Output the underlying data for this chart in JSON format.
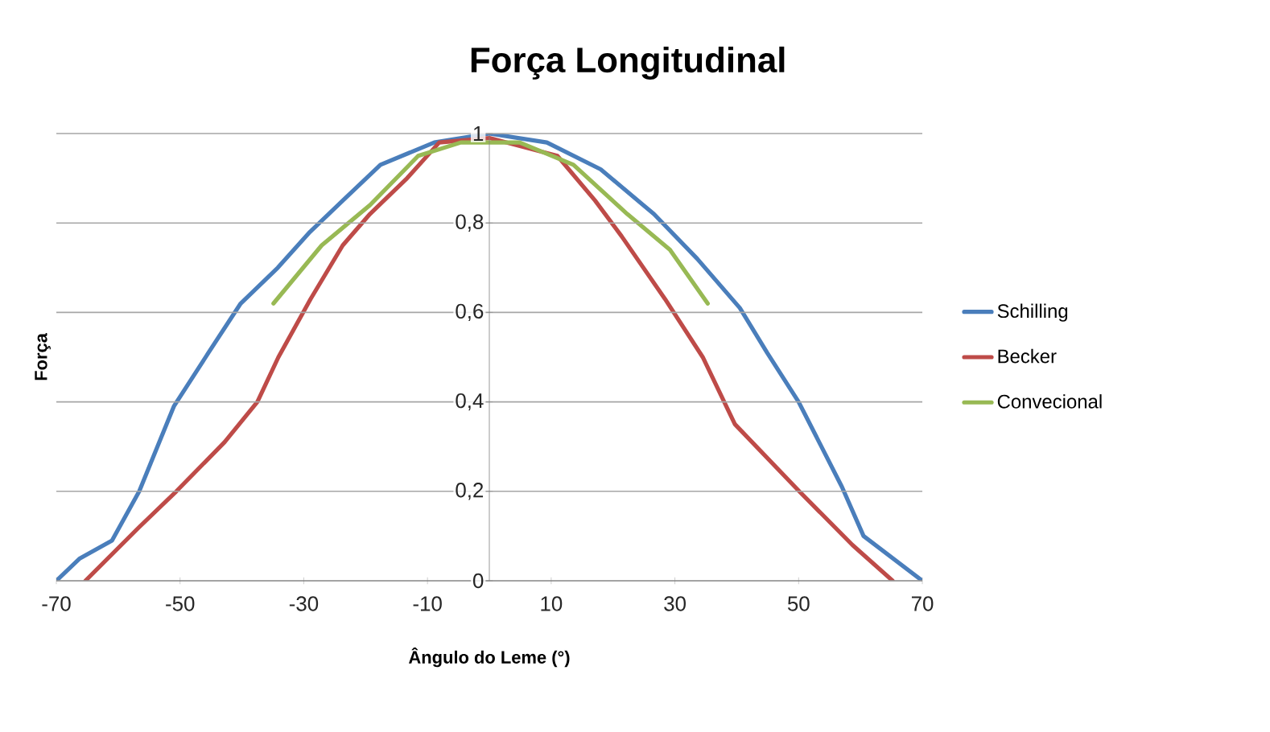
{
  "chart_data": {
    "type": "line",
    "title": "Força Longitudinal",
    "xlabel": "Ângulo do Leme (°)",
    "ylabel": "Força",
    "xlim": [
      -70,
      70
    ],
    "ylim": [
      0,
      1
    ],
    "xticks": [
      -70,
      -50,
      -30,
      -10,
      10,
      30,
      50,
      70
    ],
    "yticks": [
      0,
      {
        "value": 0.2,
        "label": "0,2"
      },
      {
        "value": 0.4,
        "label": "0,4"
      },
      {
        "value": 0.6,
        "label": "0,6"
      },
      {
        "value": 0.8,
        "label": "0,8"
      },
      1
    ],
    "grid": "y",
    "legend": "right",
    "marker": "none",
    "line_style": "solid",
    "series": [
      {
        "name": "Schilling",
        "color": "#4a7ebb",
        "x": [
          -70,
          -66.2,
          -61,
          -56.6,
          -51,
          -45.4,
          -40.2,
          -34.2,
          -29,
          -23.7,
          -17.6,
          -8.9,
          0,
          9.3,
          18,
          26.6,
          33.6,
          40.5,
          44.9,
          50,
          57,
          60.5,
          70
        ],
        "values": [
          0,
          0.05,
          0.09,
          0.2,
          0.39,
          0.51,
          0.62,
          0.7,
          0.78,
          0.85,
          0.93,
          0.98,
          1,
          0.98,
          0.92,
          0.82,
          0.72,
          0.61,
          0.51,
          0.4,
          0.21,
          0.1,
          0
        ]
      },
      {
        "name": "Becker",
        "color": "#be4b48",
        "x": [
          -65.3,
          -56.6,
          -50.6,
          -42.8,
          -37.5,
          -34.1,
          -28.9,
          -23.7,
          -19.3,
          -13.3,
          -8.1,
          0,
          11,
          17.1,
          21.4,
          28.4,
          34.5,
          39.7,
          50.1,
          58.7,
          65.2
        ],
        "values": [
          0,
          0.12,
          0.2,
          0.31,
          0.4,
          0.5,
          0.63,
          0.75,
          0.82,
          0.9,
          0.98,
          0.99,
          0.95,
          0.85,
          0.77,
          0.63,
          0.5,
          0.35,
          0.2,
          0.08,
          0
        ]
      },
      {
        "name": "Convecional",
        "color": "#98b954",
        "x": [
          -34.9,
          -27.1,
          -19.3,
          -11.5,
          -4.6,
          0,
          4.9,
          13.6,
          22.3,
          29.2,
          35.3
        ],
        "values": [
          0.62,
          0.75,
          0.84,
          0.95,
          0.98,
          0.98,
          0.98,
          0.93,
          0.82,
          0.74,
          0.62
        ]
      }
    ]
  }
}
